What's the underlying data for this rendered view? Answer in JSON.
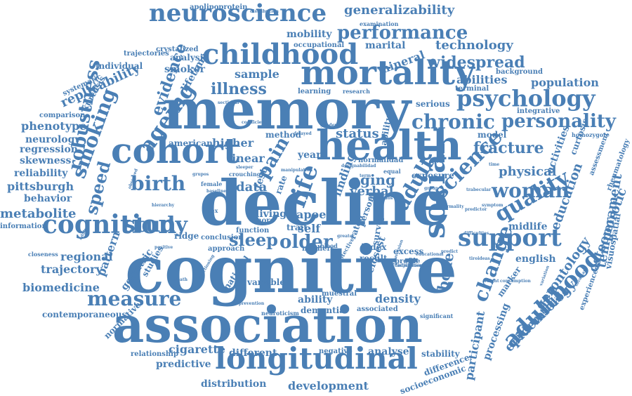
{
  "word_color": "#4a7fb5",
  "background": "#ffffff",
  "words": [
    "cognitive",
    "decline",
    "memory",
    "association",
    "health",
    "cohort",
    "mortality",
    "longitudinal",
    "childhood",
    "neuroscience",
    "cognition",
    "social",
    "support",
    "adulthood",
    "psychology",
    "study",
    "science",
    "performance",
    "life",
    "personality",
    "chronic",
    "older",
    "birth",
    "smoking",
    "adult",
    "measure",
    "woman",
    "change",
    "quality",
    "widespread",
    "illness",
    "ageing",
    "evidence",
    "robustness",
    "speed",
    "pain",
    "sleep",
    "aging",
    "status",
    "fracture",
    "physical",
    "temperament",
    "osteoporotic",
    "education",
    "midlife",
    "gerontology",
    "epidemiology",
    "bone",
    "participant",
    "processing",
    "density",
    "generalizability",
    "technology",
    "population",
    "abilities",
    "mineral",
    "replicability",
    "phenotype",
    "neurology",
    "regression",
    "skewness",
    "reliability",
    "pittsburgh",
    "behavior",
    "metabolite",
    "information",
    "biomedicine",
    "trajectory",
    "regional",
    "pattern",
    "geriatric",
    "studies",
    "contemporaneous",
    "normative",
    "relationship",
    "cigarette",
    "predictive",
    "different",
    "distribution",
    "development",
    "analyse",
    "stability",
    "difference",
    "socioeconomic",
    "international",
    "experienced",
    "visuospatial",
    "activities",
    "curtosis",
    "assessment",
    "rheumatology",
    "homozygote",
    "integrative",
    "serious",
    "model",
    "marker",
    "english",
    "excess",
    "profile",
    "result",
    "index",
    "exposure",
    "verbal",
    "sample",
    "lifetime",
    "smoker",
    "analysis",
    "crystalized",
    "individual",
    "trajectories",
    "systematic",
    "kurtosis",
    "comparison",
    "apolipoprotein",
    "mobility",
    "occupational",
    "marital",
    "examination",
    "background",
    "terminal",
    "american",
    "higher",
    "linear",
    "method",
    "year",
    "data",
    "test",
    "rate",
    "self",
    "apoe",
    "living",
    "more",
    "trait",
    "function",
    "approach",
    "conclusion",
    "national",
    "variable",
    "ability",
    "dementia",
    "muestral",
    "associated",
    "negative",
    "rated",
    "finding",
    "person",
    "survey",
    "closest",
    "mothers",
    "ability",
    "learning",
    "research",
    "sectional",
    "coefficient",
    "delayed",
    "gender",
    "female",
    "baseline",
    "grupos",
    "crouching",
    "sleeper",
    "ridge",
    "hierarchy",
    "observed",
    "manipulation",
    "sex",
    "death",
    "positive",
    "functioning",
    "prevention",
    "neuroticism",
    "protective",
    "adjustment",
    "resultados",
    "closeness",
    "adulto",
    "distribución",
    "designabilidad",
    "normalidad",
    "equal",
    "term",
    "greater",
    "blood",
    "group",
    "time",
    "agree",
    "normality",
    "symptom",
    "difficulties",
    "predict",
    "educational",
    "significant",
    "variation",
    "invariant",
    "extraversion",
    "distributionced",
    "predictor",
    "trabecular",
    "tiroideas",
    "weight",
    "consumption",
    "relacion",
    "sliding",
    "habitat",
    "signal"
  ]
}
